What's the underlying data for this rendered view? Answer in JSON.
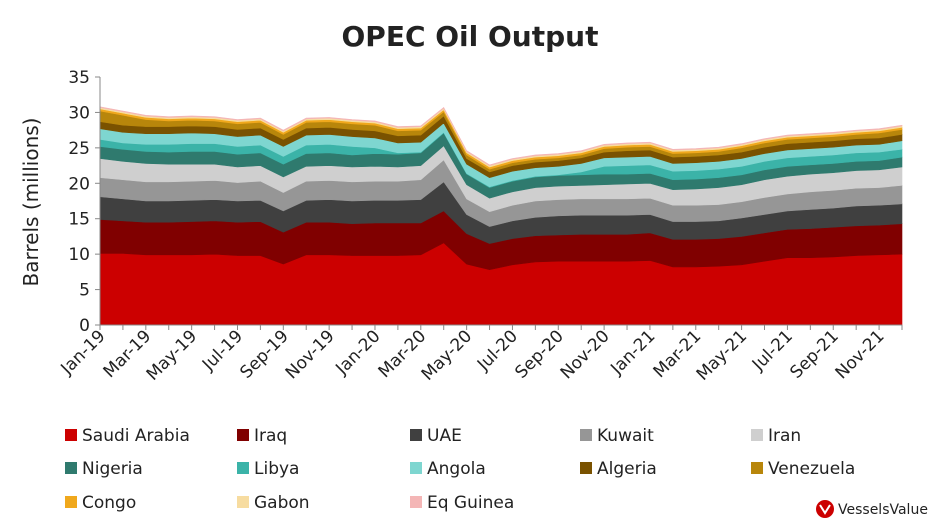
{
  "chart_data": {
    "type": "area",
    "stacked": true,
    "title": "OPEC Oil Output",
    "ylabel": "Barrels (millions)",
    "xlabel": "",
    "ylim": [
      0,
      35
    ],
    "yticks": [
      0,
      5,
      10,
      15,
      20,
      25,
      30,
      35
    ],
    "grid": false,
    "legend_position": "bottom",
    "x": [
      "Jan-19",
      "Feb-19",
      "Mar-19",
      "Apr-19",
      "May-19",
      "Jun-19",
      "Jul-19",
      "Aug-19",
      "Sep-19",
      "Oct-19",
      "Nov-19",
      "Dec-19",
      "Jan-20",
      "Feb-20",
      "Mar-20",
      "Apr-20",
      "May-20",
      "Jun-20",
      "Jul-20",
      "Aug-20",
      "Sep-20",
      "Oct-20",
      "Nov-20",
      "Dec-20",
      "Jan-21",
      "Feb-21",
      "Mar-21",
      "Apr-21",
      "May-21",
      "Jun-21",
      "Jul-21",
      "Aug-21",
      "Sep-21",
      "Oct-21",
      "Nov-21",
      "Dec-21"
    ],
    "x_tick_labels": [
      "Jan-19",
      "Mar-19",
      "May-19",
      "Jul-19",
      "Sep-19",
      "Nov-19",
      "Jan-20",
      "Mar-20",
      "May-20",
      "Jul-20",
      "Sep-20",
      "Nov-20",
      "Jan-21",
      "Mar-21",
      "May-21",
      "Jul-21",
      "Sep-21",
      "Nov-21"
    ],
    "series": [
      {
        "name": "Saudi Arabia",
        "color": "#cc0000",
        "values": [
          10.1,
          10.1,
          9.9,
          9.9,
          9.9,
          10.0,
          9.8,
          9.8,
          8.6,
          9.9,
          9.9,
          9.8,
          9.8,
          9.8,
          9.9,
          11.6,
          8.6,
          7.8,
          8.5,
          8.9,
          9.0,
          9.0,
          9.0,
          9.0,
          9.1,
          8.2,
          8.2,
          8.3,
          8.5,
          9.0,
          9.5,
          9.5,
          9.6,
          9.8,
          9.9,
          10.0
        ]
      },
      {
        "name": "Iraq",
        "color": "#800000",
        "values": [
          4.8,
          4.6,
          4.6,
          4.6,
          4.7,
          4.7,
          4.7,
          4.8,
          4.5,
          4.6,
          4.6,
          4.5,
          4.6,
          4.6,
          4.5,
          4.5,
          4.3,
          3.7,
          3.7,
          3.7,
          3.7,
          3.8,
          3.8,
          3.8,
          3.9,
          3.9,
          3.9,
          3.9,
          4.0,
          4.0,
          4.0,
          4.1,
          4.2,
          4.2,
          4.2,
          4.3
        ]
      },
      {
        "name": "UAE",
        "color": "#404040",
        "values": [
          3.2,
          3.1,
          3.0,
          3.0,
          3.0,
          3.0,
          3.0,
          3.0,
          3.0,
          3.1,
          3.2,
          3.2,
          3.2,
          3.2,
          3.3,
          4.1,
          2.7,
          2.4,
          2.5,
          2.6,
          2.7,
          2.7,
          2.7,
          2.7,
          2.6,
          2.5,
          2.5,
          2.5,
          2.6,
          2.6,
          2.6,
          2.7,
          2.7,
          2.8,
          2.8,
          2.8
        ]
      },
      {
        "name": "Kuwait",
        "color": "#969696",
        "values": [
          2.7,
          2.7,
          2.7,
          2.7,
          2.7,
          2.7,
          2.6,
          2.7,
          2.6,
          2.7,
          2.7,
          2.7,
          2.7,
          2.7,
          2.8,
          3.1,
          2.2,
          2.1,
          2.2,
          2.3,
          2.3,
          2.3,
          2.3,
          2.3,
          2.3,
          2.3,
          2.3,
          2.3,
          2.3,
          2.4,
          2.4,
          2.5,
          2.5,
          2.5,
          2.5,
          2.6
        ]
      },
      {
        "name": "Iran",
        "color": "#cfcfcf",
        "values": [
          2.7,
          2.6,
          2.6,
          2.5,
          2.4,
          2.3,
          2.2,
          2.2,
          2.2,
          2.1,
          2.1,
          2.1,
          2.1,
          2.0,
          2.0,
          2.0,
          2.0,
          1.9,
          1.9,
          1.9,
          1.9,
          1.9,
          2.0,
          2.1,
          2.1,
          2.2,
          2.3,
          2.4,
          2.4,
          2.5,
          2.5,
          2.5,
          2.5,
          2.5,
          2.5,
          2.6
        ]
      },
      {
        "name": "Nigeria",
        "color": "#2f7a6e",
        "values": [
          1.7,
          1.7,
          1.7,
          1.7,
          1.8,
          1.8,
          1.8,
          1.8,
          1.8,
          1.8,
          1.8,
          1.7,
          1.8,
          1.8,
          1.8,
          1.8,
          1.5,
          1.5,
          1.5,
          1.5,
          1.5,
          1.5,
          1.5,
          1.4,
          1.4,
          1.4,
          1.4,
          1.4,
          1.4,
          1.4,
          1.4,
          1.3,
          1.3,
          1.3,
          1.3,
          1.4
        ]
      },
      {
        "name": "Libya",
        "color": "#3bb3a8",
        "values": [
          1.0,
          0.9,
          1.0,
          1.1,
          1.1,
          1.1,
          1.1,
          1.1,
          1.1,
          1.2,
          1.2,
          1.2,
          0.8,
          0.2,
          0.1,
          0.1,
          0.1,
          0.1,
          0.1,
          0.1,
          0.1,
          0.4,
          1.1,
          1.2,
          1.2,
          1.2,
          1.2,
          1.2,
          1.2,
          1.2,
          1.2,
          1.2,
          1.2,
          1.2,
          1.2,
          1.1
        ]
      },
      {
        "name": "Angola",
        "color": "#7ed6d0",
        "values": [
          1.5,
          1.5,
          1.5,
          1.5,
          1.5,
          1.4,
          1.4,
          1.4,
          1.4,
          1.4,
          1.4,
          1.4,
          1.4,
          1.4,
          1.4,
          1.3,
          1.3,
          1.3,
          1.3,
          1.2,
          1.2,
          1.2,
          1.2,
          1.2,
          1.2,
          1.1,
          1.1,
          1.1,
          1.1,
          1.1,
          1.1,
          1.1,
          1.1,
          1.1,
          1.1,
          1.2
        ]
      },
      {
        "name": "Algeria",
        "color": "#7a5200",
        "values": [
          1.0,
          1.0,
          1.0,
          1.0,
          1.0,
          1.0,
          1.0,
          1.0,
          1.0,
          1.0,
          1.0,
          1.0,
          1.0,
          1.0,
          1.0,
          1.0,
          0.8,
          0.8,
          0.8,
          0.8,
          0.8,
          0.8,
          0.8,
          0.9,
          0.9,
          0.9,
          0.9,
          0.9,
          0.9,
          0.9,
          0.9,
          0.9,
          0.9,
          0.9,
          0.9,
          0.9
        ]
      },
      {
        "name": "Venezuela",
        "color": "#b8860b",
        "values": [
          1.5,
          1.4,
          1.0,
          0.8,
          0.8,
          0.8,
          0.8,
          0.8,
          0.7,
          0.8,
          0.8,
          0.8,
          0.8,
          0.7,
          0.7,
          0.6,
          0.5,
          0.4,
          0.4,
          0.4,
          0.4,
          0.4,
          0.5,
          0.5,
          0.5,
          0.5,
          0.5,
          0.5,
          0.6,
          0.6,
          0.6,
          0.6,
          0.6,
          0.6,
          0.7,
          0.7
        ]
      },
      {
        "name": "Congo",
        "color": "#f0a81c",
        "values": [
          0.3,
          0.3,
          0.3,
          0.3,
          0.3,
          0.3,
          0.3,
          0.3,
          0.3,
          0.3,
          0.3,
          0.3,
          0.3,
          0.3,
          0.3,
          0.3,
          0.3,
          0.3,
          0.3,
          0.3,
          0.3,
          0.3,
          0.3,
          0.3,
          0.3,
          0.3,
          0.3,
          0.3,
          0.3,
          0.3,
          0.3,
          0.3,
          0.3,
          0.3,
          0.3,
          0.3
        ]
      },
      {
        "name": "Gabon",
        "color": "#f7dca0",
        "values": [
          0.2,
          0.2,
          0.2,
          0.2,
          0.2,
          0.2,
          0.2,
          0.2,
          0.2,
          0.2,
          0.2,
          0.2,
          0.2,
          0.2,
          0.2,
          0.2,
          0.2,
          0.2,
          0.2,
          0.2,
          0.2,
          0.2,
          0.2,
          0.2,
          0.2,
          0.2,
          0.2,
          0.2,
          0.2,
          0.2,
          0.2,
          0.2,
          0.2,
          0.2,
          0.2,
          0.2
        ]
      },
      {
        "name": "Eq Guinea",
        "color": "#f4b6b6",
        "values": [
          0.1,
          0.1,
          0.1,
          0.1,
          0.1,
          0.1,
          0.1,
          0.1,
          0.1,
          0.1,
          0.1,
          0.1,
          0.1,
          0.1,
          0.1,
          0.1,
          0.1,
          0.1,
          0.1,
          0.1,
          0.1,
          0.1,
          0.1,
          0.1,
          0.1,
          0.1,
          0.1,
          0.1,
          0.1,
          0.1,
          0.1,
          0.1,
          0.1,
          0.1,
          0.1,
          0.1
        ]
      }
    ]
  },
  "brand": {
    "name": "VesselsValue",
    "logo_color": "#cc0000"
  }
}
